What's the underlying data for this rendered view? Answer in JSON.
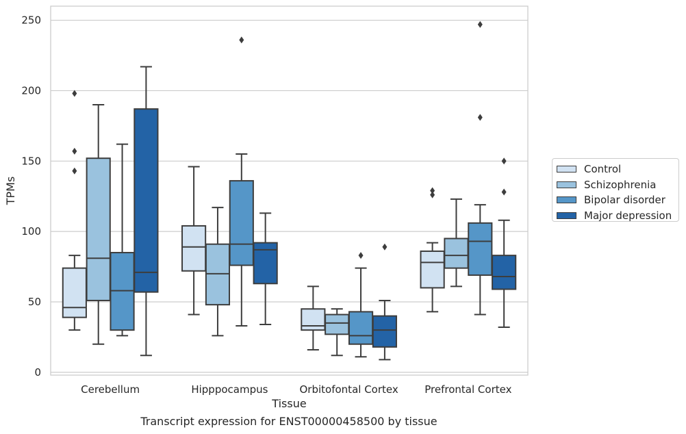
{
  "chart_data": {
    "type": "box",
    "title": "",
    "caption": "Transcript expression for ENST00000458500 by tissue",
    "xlabel": "Tissue",
    "ylabel": "TPMs",
    "ylim": [
      -2,
      260
    ],
    "yticks": [
      0,
      50,
      100,
      150,
      200,
      250
    ],
    "grid": true,
    "legend_position": "right",
    "categories": [
      "Cerebellum",
      "Hipppocampus",
      "Orbitofontal Cortex",
      "Prefrontal Cortex"
    ],
    "series": [
      {
        "name": "Control",
        "color": "#d1e2f2",
        "boxes": [
          {
            "whisker_low": 30,
            "q1": 39,
            "median": 46,
            "q3": 74,
            "whisker_high": 83,
            "outliers": [
              198,
              157,
              143
            ]
          },
          {
            "whisker_low": 41,
            "q1": 72,
            "median": 89,
            "q3": 104,
            "whisker_high": 146,
            "outliers": []
          },
          {
            "whisker_low": 16,
            "q1": 30,
            "median": 33,
            "q3": 45,
            "whisker_high": 61,
            "outliers": []
          },
          {
            "whisker_low": 43,
            "q1": 60,
            "median": 78,
            "q3": 86,
            "whisker_high": 92,
            "outliers": [
              129,
              126
            ]
          }
        ]
      },
      {
        "name": "Schizophrenia",
        "color": "#9ac2de",
        "boxes": [
          {
            "whisker_low": 20,
            "q1": 51,
            "median": 81,
            "q3": 152,
            "whisker_high": 190,
            "outliers": []
          },
          {
            "whisker_low": 26,
            "q1": 48,
            "median": 70,
            "q3": 91,
            "whisker_high": 117,
            "outliers": []
          },
          {
            "whisker_low": 12,
            "q1": 27,
            "median": 35,
            "q3": 41,
            "whisker_high": 45,
            "outliers": []
          },
          {
            "whisker_low": 61,
            "q1": 74,
            "median": 83,
            "q3": 95,
            "whisker_high": 123,
            "outliers": []
          }
        ]
      },
      {
        "name": "Bipolar disorder",
        "color": "#5596c8",
        "boxes": [
          {
            "whisker_low": 26,
            "q1": 30,
            "median": 58,
            "q3": 85,
            "whisker_high": 162,
            "outliers": []
          },
          {
            "whisker_low": 33,
            "q1": 76,
            "median": 91,
            "q3": 136,
            "whisker_high": 155,
            "outliers": [
              236
            ]
          },
          {
            "whisker_low": 11,
            "q1": 20,
            "median": 26,
            "q3": 43,
            "whisker_high": 74,
            "outliers": [
              83
            ]
          },
          {
            "whisker_low": 41,
            "q1": 69,
            "median": 93,
            "q3": 106,
            "whisker_high": 119,
            "outliers": [
              247,
              181
            ]
          }
        ]
      },
      {
        "name": "Major depression",
        "color": "#2363a6",
        "boxes": [
          {
            "whisker_low": 12,
            "q1": 57,
            "median": 71,
            "q3": 187,
            "whisker_high": 217,
            "outliers": []
          },
          {
            "whisker_low": 34,
            "q1": 63,
            "median": 87,
            "q3": 92,
            "whisker_high": 113,
            "outliers": []
          },
          {
            "whisker_low": 9,
            "q1": 18,
            "median": 30,
            "q3": 40,
            "whisker_high": 51,
            "outliers": [
              89
            ]
          },
          {
            "whisker_low": 32,
            "q1": 59,
            "median": 68,
            "q3": 83,
            "whisker_high": 108,
            "outliers": [
              150,
              128
            ]
          }
        ]
      }
    ]
  }
}
